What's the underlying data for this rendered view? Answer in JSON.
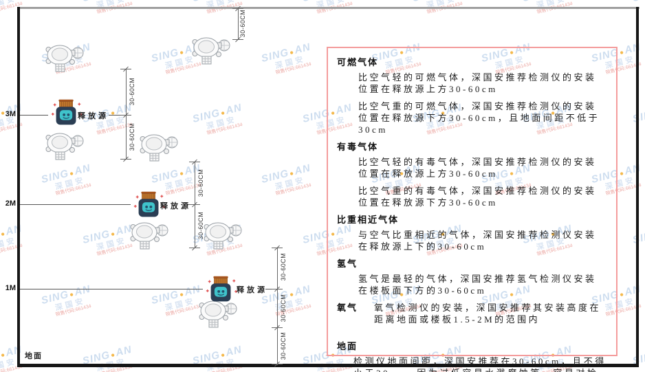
{
  "diagram": {
    "heights": [
      "3M",
      "2M",
      "1M"
    ],
    "release_source": "释放源",
    "ground_label": "地面",
    "dim_label": "30-60CM"
  },
  "watermark": {
    "brand_left": "SING",
    "brand_dot": "●",
    "brand_right": "AN",
    "brand_cn": "深国安",
    "code": "销售代码:661434"
  },
  "panel": {
    "border_color": "#f49c9c",
    "sections": [
      {
        "heading": "可燃气体",
        "paragraphs": [
          "比空气轻的可燃气体，深国安推荐检测仪的安装位置在释放源上方30-60cm",
          "比空气重的可燃气体，深国安推荐检测仪的安装位置在释放源下方30-60cm，且地面间距不低于30cm"
        ]
      },
      {
        "heading": "有毒气体",
        "paragraphs": [
          "比空气轻的有毒气体，深国安推荐检测仪的安装位置在释放源上方30-60cm",
          "比空气重的有毒气体，深国安推荐检测仪的安装位置在释放源下方30-60cm"
        ]
      },
      {
        "heading": "比重相近气体",
        "paragraphs": [
          "与空气比重相近的气体，深国安推荐检测仪安装在释放源上下的30-60cm"
        ]
      },
      {
        "heading": "氢气",
        "paragraphs": [
          "氢气是最轻的气体，深国安推荐氢气检测仪安装在楼板面下方的30-60cm"
        ]
      },
      {
        "heading": "氧气",
        "paragraphs": [
          "氧气检测仪的安装，深国安推荐其安装高度在距离地面或楼板1.5-2M的范围内"
        ]
      },
      {
        "heading": "地面",
        "paragraphs": [
          "检测仪地面间距，深国安推荐在30-60cm，且不得小于30cm，因为过低容易水溅腐蚀等，容易对检测仪造成伤害"
        ]
      }
    ]
  }
}
